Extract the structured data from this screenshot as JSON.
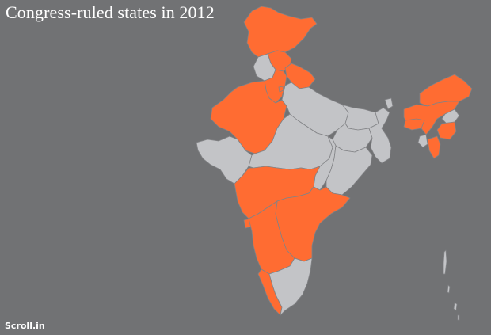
{
  "title": "Congress-ruled states in 2012",
  "credit": "Scroll.in",
  "colors": {
    "background": "#717274",
    "congress_ruled": "#ff6c32",
    "other": "#c3c4c7",
    "border": "#828386",
    "text": "#ffffff"
  },
  "states": [
    {
      "name": "Jammu and Kashmir",
      "congress_ruled": true
    },
    {
      "name": "Himachal Pradesh",
      "congress_ruled": true
    },
    {
      "name": "Punjab",
      "congress_ruled": false
    },
    {
      "name": "Uttarakhand",
      "congress_ruled": true
    },
    {
      "name": "Haryana",
      "congress_ruled": true
    },
    {
      "name": "Delhi",
      "congress_ruled": true
    },
    {
      "name": "Rajasthan",
      "congress_ruled": true
    },
    {
      "name": "Uttar Pradesh",
      "congress_ruled": false
    },
    {
      "name": "Bihar",
      "congress_ruled": false
    },
    {
      "name": "Gujarat",
      "congress_ruled": false
    },
    {
      "name": "Madhya Pradesh",
      "congress_ruled": false
    },
    {
      "name": "Chhattisgarh",
      "congress_ruled": false
    },
    {
      "name": "Jharkhand",
      "congress_ruled": false
    },
    {
      "name": "West Bengal",
      "congress_ruled": false
    },
    {
      "name": "Odisha",
      "congress_ruled": false
    },
    {
      "name": "Maharashtra",
      "congress_ruled": true
    },
    {
      "name": "Andhra Pradesh",
      "congress_ruled": true
    },
    {
      "name": "Goa",
      "congress_ruled": true
    },
    {
      "name": "Karnataka",
      "congress_ruled": true
    },
    {
      "name": "Kerala",
      "congress_ruled": true
    },
    {
      "name": "Tamil Nadu",
      "congress_ruled": false
    },
    {
      "name": "Sikkim",
      "congress_ruled": false
    },
    {
      "name": "Arunachal Pradesh",
      "congress_ruled": true
    },
    {
      "name": "Assam",
      "congress_ruled": true
    },
    {
      "name": "Meghalaya",
      "congress_ruled": true
    },
    {
      "name": "Nagaland",
      "congress_ruled": false
    },
    {
      "name": "Manipur",
      "congress_ruled": true
    },
    {
      "name": "Mizoram",
      "congress_ruled": true
    },
    {
      "name": "Tripura",
      "congress_ruled": false
    },
    {
      "name": "Andaman and Nicobar Islands",
      "congress_ruled": false
    }
  ]
}
